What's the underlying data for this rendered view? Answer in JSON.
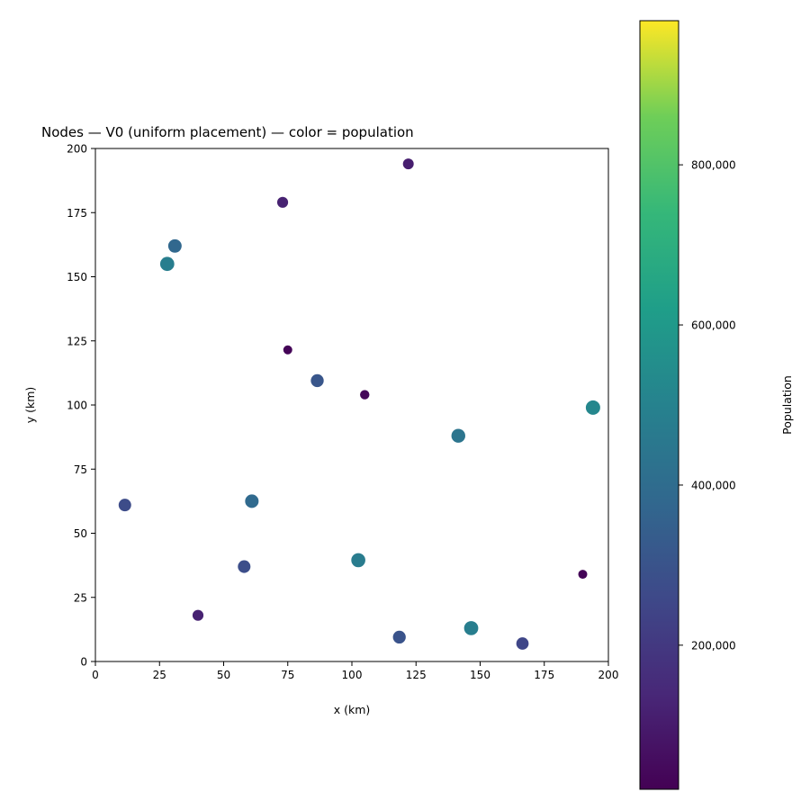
{
  "chart_data": {
    "type": "scatter",
    "title": "Nodes — V0 (uniform placement) — color = population",
    "xlabel": "x (km)",
    "ylabel": "y (km)",
    "xlim": [
      0,
      200
    ],
    "ylim": [
      0,
      200
    ],
    "xticks": [
      "0",
      "25",
      "50",
      "75",
      "100",
      "125",
      "150",
      "175",
      "200"
    ],
    "yticks": [
      "0",
      "25",
      "50",
      "75",
      "100",
      "125",
      "150",
      "175",
      "200"
    ],
    "grid": false,
    "colormap": "viridis",
    "size_encoding": "population",
    "color_encoding": "population",
    "colorbar": {
      "label": "Population",
      "range": [
        20000,
        980000
      ],
      "ticks": [
        "200,000",
        "400,000",
        "600,000",
        "800,000"
      ],
      "tick_values": [
        200000,
        400000,
        600000,
        800000
      ]
    },
    "points": [
      {
        "x": 122,
        "y": 194,
        "population": 110000
      },
      {
        "x": 73,
        "y": 179,
        "population": 120000
      },
      {
        "x": 31,
        "y": 162,
        "population": 380000
      },
      {
        "x": 28,
        "y": 155,
        "population": 480000
      },
      {
        "x": 75,
        "y": 121.5,
        "population": 30000
      },
      {
        "x": 86.5,
        "y": 109.5,
        "population": 310000
      },
      {
        "x": 105,
        "y": 104,
        "population": 40000
      },
      {
        "x": 194,
        "y": 99,
        "population": 520000
      },
      {
        "x": 141.5,
        "y": 88,
        "population": 440000
      },
      {
        "x": 11.5,
        "y": 61,
        "population": 270000
      },
      {
        "x": 61,
        "y": 62.5,
        "population": 390000
      },
      {
        "x": 102.5,
        "y": 39.5,
        "population": 470000
      },
      {
        "x": 58,
        "y": 37,
        "population": 280000
      },
      {
        "x": 190,
        "y": 34,
        "population": 30000
      },
      {
        "x": 40,
        "y": 18,
        "population": 120000
      },
      {
        "x": 146.5,
        "y": 13,
        "population": 480000
      },
      {
        "x": 118.5,
        "y": 9.5,
        "population": 300000
      },
      {
        "x": 166.5,
        "y": 7,
        "population": 250000
      }
    ]
  }
}
